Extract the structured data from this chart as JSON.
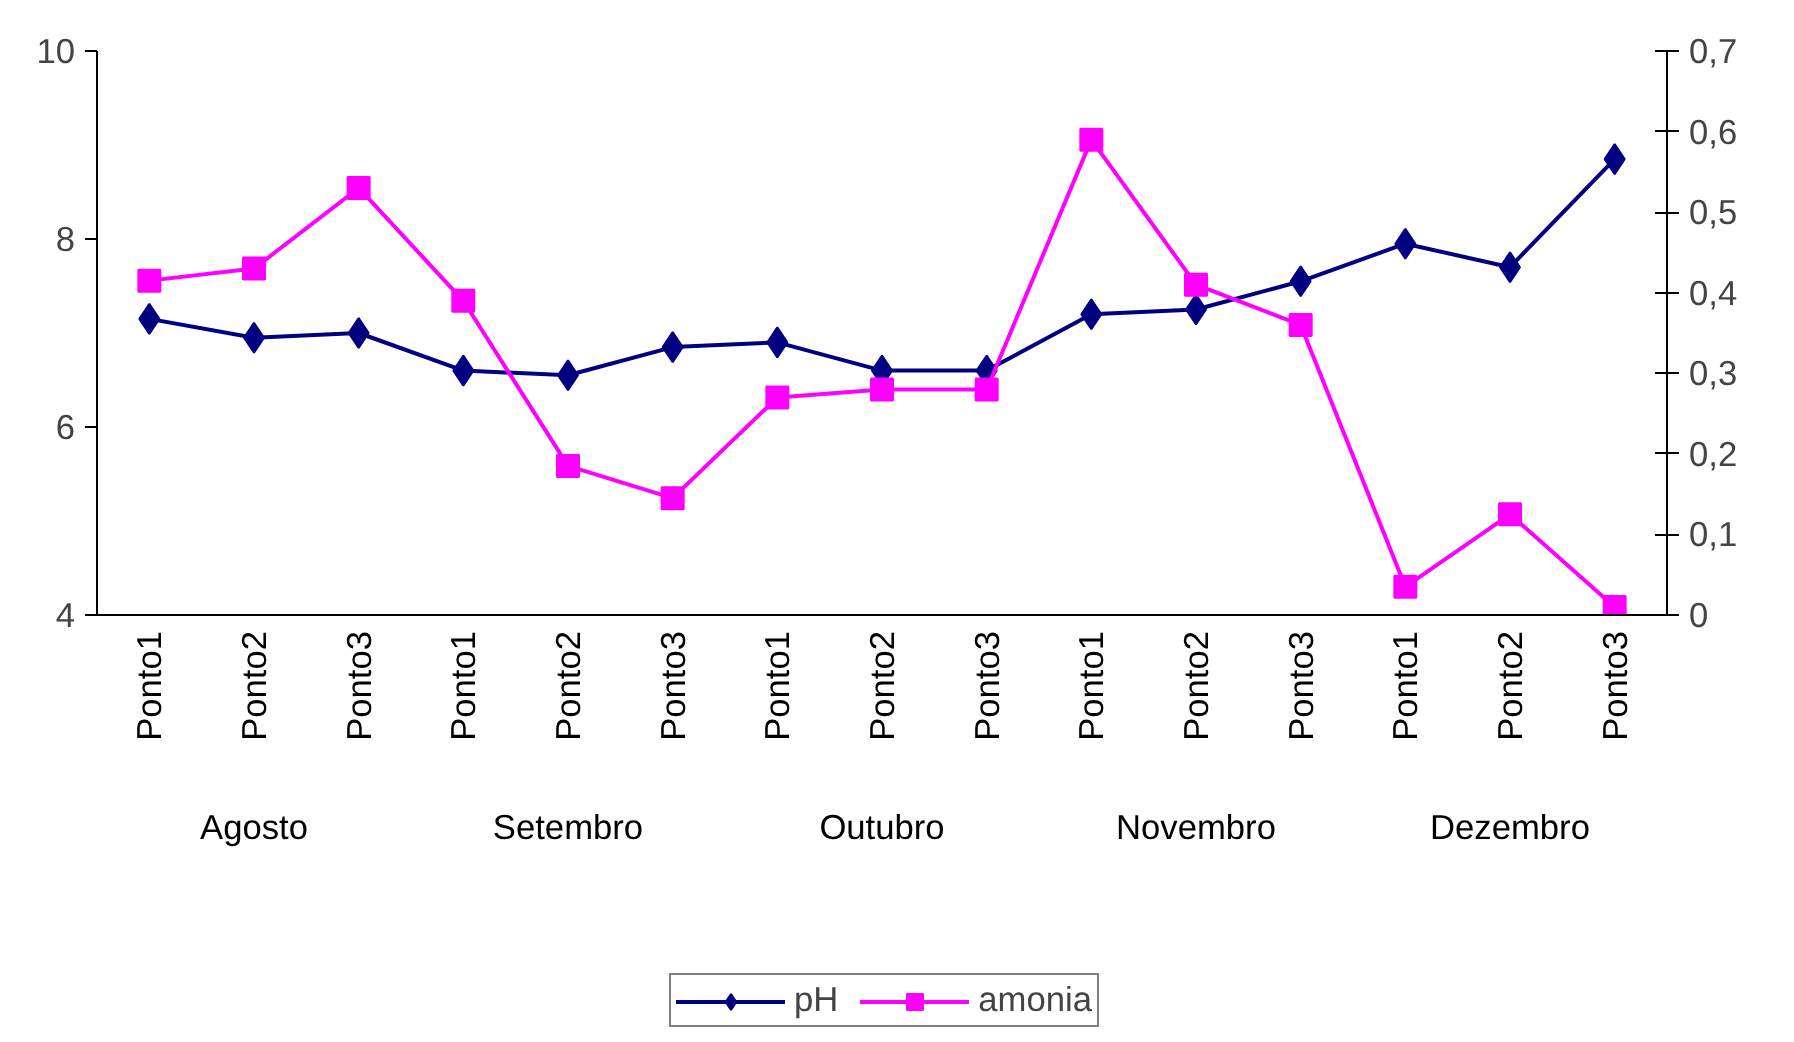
{
  "chart_data": {
    "type": "line",
    "categories": [
      "Ponto1",
      "Ponto2",
      "Ponto3",
      "Ponto1",
      "Ponto2",
      "Ponto3",
      "Ponto1",
      "Ponto2",
      "Ponto3",
      "Ponto1",
      "Ponto2",
      "Ponto3",
      "Ponto1",
      "Ponto2",
      "Ponto3"
    ],
    "annotations": [
      "Agosto",
      "Setembro",
      "Outubro",
      "Novembro",
      "Dezembro"
    ],
    "series": [
      {
        "name": "pH",
        "color": "#000080",
        "marker": "diamond",
        "values": [
          7.15,
          6.95,
          7.0,
          6.6,
          6.55,
          6.85,
          6.9,
          6.6,
          6.6,
          7.2,
          7.25,
          7.55,
          7.95,
          7.7,
          8.85
        ]
      },
      {
        "name": "amonia",
        "color": "#ff00ff",
        "marker": "square",
        "axis": "y2",
        "values": [
          0.415,
          0.43,
          0.53,
          0.39,
          0.185,
          0.145,
          0.27,
          0.28,
          0.28,
          0.59,
          0.41,
          0.36,
          0.035,
          0.125,
          0.01
        ]
      }
    ],
    "ylim": [
      4,
      10
    ],
    "yticks": [
      4,
      6,
      8,
      10
    ],
    "y2lim": [
      0,
      0.7
    ],
    "y2ticks": [
      0,
      {
        "value": 0.1,
        "label": "0,1"
      },
      {
        "value": 0.2,
        "label": "0,2"
      },
      {
        "value": 0.3,
        "label": "0,3"
      },
      {
        "value": 0.4,
        "label": "0,4"
      },
      {
        "value": 0.5,
        "label": "0,5"
      },
      {
        "value": 0.6,
        "label": "0,6"
      },
      {
        "value": 0.7,
        "label": "0,7"
      }
    ],
    "grid": false,
    "legend": "bottom"
  }
}
